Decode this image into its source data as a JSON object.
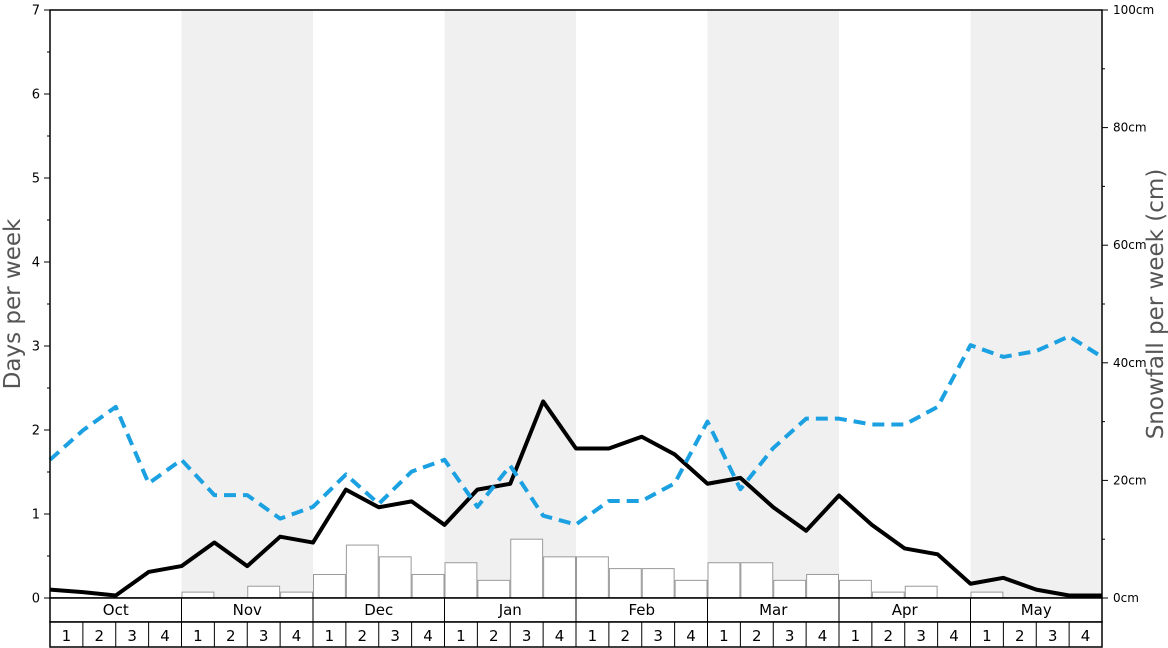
{
  "chart_data": {
    "type": "bar+line",
    "months": [
      "Oct",
      "Nov",
      "Dec",
      "Jan",
      "Feb",
      "Mar",
      "Apr",
      "May"
    ],
    "weeks": [
      "1",
      "2",
      "3",
      "4"
    ],
    "left_axis": {
      "label": "Days per week",
      "ylim": [
        0,
        7
      ],
      "ticks": [
        "0",
        "1",
        "2",
        "3",
        "4",
        "5",
        "6",
        "7"
      ]
    },
    "right_axis": {
      "label": "Snowfall per week (cm)",
      "ylim": [
        0,
        100
      ],
      "ticks": [
        "0cm",
        "20cm",
        "40cm",
        "60cm",
        "80cm",
        "100cm"
      ]
    },
    "series": [
      {
        "type": "bar",
        "axis": "left",
        "color": "#ffffff",
        "values": [
          0,
          0,
          0,
          0,
          0.07,
          0,
          0.14,
          0.07,
          0.28,
          0.63,
          0.49,
          0.28,
          0.42,
          0.21,
          0.7,
          0.49,
          0.49,
          0.35,
          0.35,
          0.21,
          0.42,
          0.42,
          0.21,
          0.28,
          0.21,
          0.07,
          0.14,
          0,
          0.07,
          0,
          0,
          0
        ]
      },
      {
        "type": "line",
        "axis": "left",
        "color": "#000000",
        "style": "solid",
        "values": [
          0.1,
          0.07,
          0.03,
          0.31,
          0.38,
          0.66,
          0.38,
          0.73,
          0.66,
          1.29,
          1.08,
          1.15,
          0.87,
          1.29,
          1.36,
          2.34,
          1.78,
          1.78,
          1.92,
          1.71,
          1.36,
          1.43,
          1.08,
          0.8,
          1.22,
          0.87,
          0.59,
          0.52,
          0.17,
          0.24,
          0.1,
          0.03,
          0.03
        ]
      },
      {
        "type": "line",
        "axis": "right",
        "color": "#1ba1e2",
        "style": "dashed",
        "values": [
          23.5,
          28.5,
          32.5,
          19.5,
          23.5,
          17.5,
          17.5,
          13.5,
          15.5,
          21,
          16,
          21.5,
          23.5,
          15.5,
          22.5,
          14,
          12.5,
          16.5,
          16.5,
          19.5,
          30,
          18.5,
          25.5,
          30.5,
          30.5,
          29.5,
          29.5,
          32.5,
          43,
          41,
          42,
          44.5,
          41
        ]
      }
    ]
  }
}
